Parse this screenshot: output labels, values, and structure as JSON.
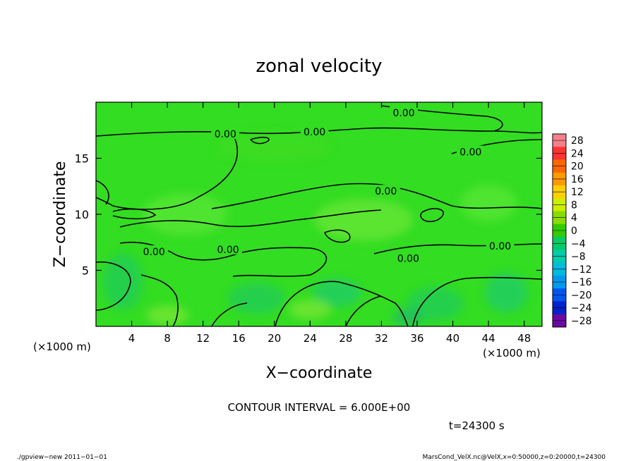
{
  "chart_data": {
    "type": "heatmap",
    "title": "zonal velocity",
    "xlabel": "X−coordinate",
    "ylabel": "Z−coordinate",
    "x_unit_left": "(×1000 m)",
    "x_unit_right": "(×1000 m)",
    "xlim": [
      0,
      50
    ],
    "ylim": [
      0,
      20
    ],
    "x_ticks": [
      4,
      8,
      12,
      16,
      20,
      24,
      28,
      32,
      36,
      40,
      44,
      48
    ],
    "y_ticks": [
      5,
      10,
      15
    ],
    "colorbar_levels": [
      28,
      24,
      20,
      16,
      12,
      8,
      4,
      0,
      -4,
      -8,
      -12,
      -16,
      -20,
      -24,
      -28
    ],
    "colorbar_labels": [
      "28",
      "24",
      "20",
      "16",
      "12",
      "8",
      "4",
      "0",
      "−4",
      "−8",
      "−12",
      "−16",
      "−20",
      "−24",
      "−28"
    ],
    "colorbar_colors": [
      "#f4808a",
      "#ff3333",
      "#ff6600",
      "#ff9900",
      "#ffd000",
      "#ccee00",
      "#88dd00",
      "#33cc00",
      "#00cc66",
      "#00ccaa",
      "#00bbdd",
      "#0099ee",
      "#0055ee",
      "#0022cc",
      "#6a0aa0"
    ],
    "contour_labels": [
      {
        "text": "0.00",
        "x": 14.5,
        "y": 17.1
      },
      {
        "text": "0.00",
        "x": 24.5,
        "y": 17.3
      },
      {
        "text": "0.00",
        "x": 34.5,
        "y": 19.0
      },
      {
        "text": "0.00",
        "x": 42.0,
        "y": 15.5
      },
      {
        "text": "0.00",
        "x": 32.5,
        "y": 12.0
      },
      {
        "text": "0.00",
        "x": 6.5,
        "y": 6.6
      },
      {
        "text": "0.00",
        "x": 14.8,
        "y": 6.8
      },
      {
        "text": "0.00",
        "x": 35.0,
        "y": 6.0
      },
      {
        "text": "0.00",
        "x": 45.3,
        "y": 7.1
      }
    ],
    "contour_interval": "CONTOUR INTERVAL = 6.000E+00",
    "time_label": "t=24300 s"
  },
  "footer": {
    "left": "./gpview−new  2011−01−01",
    "right": "MarsCond_VelX.nc@VelX,x=0:50000,z=0:20000,t=24300"
  },
  "colors": {
    "field": "#33dd22",
    "field_light": "#66e633",
    "field_dark": "#22cc55"
  }
}
